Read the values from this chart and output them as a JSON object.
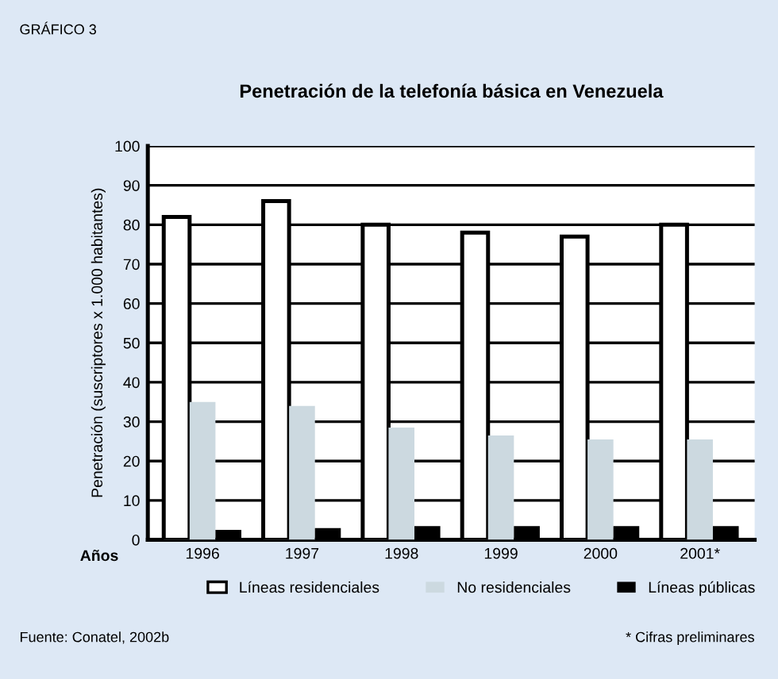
{
  "chart_data": {
    "type": "bar",
    "title": "Penetración de la telefonía básica en Venezuela",
    "ylabel": "Penetración (suscriptores x 1.000 habitantes)",
    "xlabel": "Años",
    "categories": [
      "1996",
      "1997",
      "1998",
      "1999",
      "2000",
      "2001*"
    ],
    "series": [
      {
        "name": "Líneas residenciales",
        "color": "#ffffff",
        "values": [
          82,
          86,
          80,
          78,
          77,
          80
        ]
      },
      {
        "name": "No residenciales",
        "color": "#ccd9e0",
        "values": [
          35,
          34,
          28.5,
          26.5,
          25.5,
          25.5
        ]
      },
      {
        "name": "Líneas públicas",
        "color": "#000000",
        "values": [
          2.5,
          3,
          3.5,
          3.5,
          3.5,
          3.5
        ]
      }
    ],
    "ylim": [
      0,
      100
    ],
    "yticks": [
      0,
      10,
      20,
      30,
      40,
      50,
      60,
      70,
      80,
      90,
      100
    ],
    "grid": "y",
    "legend": "bottom",
    "annotations": [
      "GRÁFICO 3",
      "Fuente: Conatel, 2002b",
      "* Cifras preliminares"
    ]
  }
}
